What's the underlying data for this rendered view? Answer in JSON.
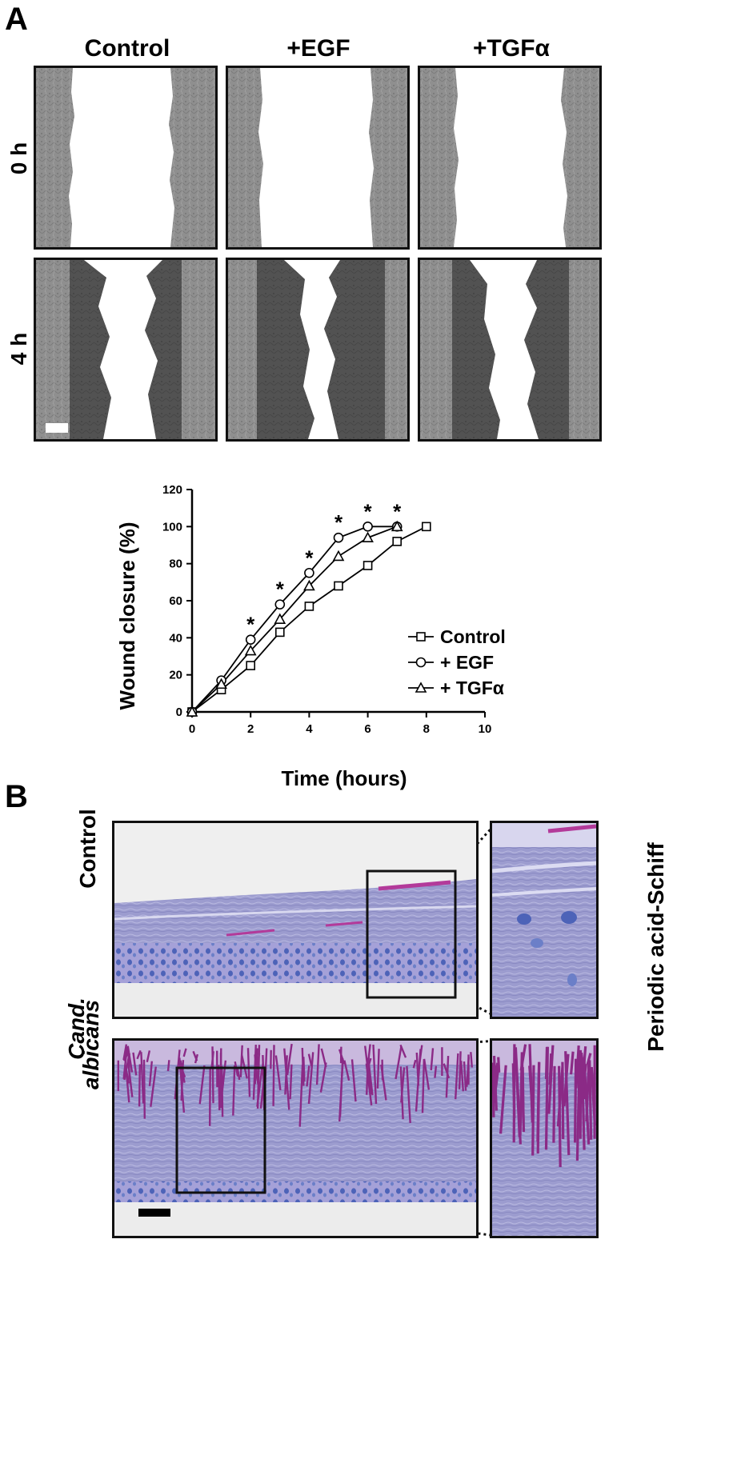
{
  "panel_a": {
    "letter": "A",
    "columns": [
      "Control",
      "+EGF",
      "+TGFα"
    ],
    "rows": [
      "0 h",
      "4 h"
    ]
  },
  "chart_data": {
    "type": "line",
    "xlabel": "Time (hours)",
    "ylabel": "Wound closure (%)",
    "xlim": [
      0,
      10
    ],
    "ylim": [
      0,
      120
    ],
    "xticks": [
      0,
      2,
      4,
      6,
      8,
      10
    ],
    "yticks": [
      0,
      20,
      40,
      60,
      80,
      100,
      120
    ],
    "legend_position": "lower-right",
    "series": [
      {
        "name": "Control",
        "marker": "square",
        "x": [
          0,
          1,
          2,
          3,
          4,
          5,
          6,
          7,
          8
        ],
        "y": [
          0,
          12,
          25,
          43,
          57,
          68,
          79,
          92,
          100
        ]
      },
      {
        "name": "+ EGF",
        "marker": "circle",
        "x": [
          0,
          1,
          2,
          3,
          4,
          5,
          6,
          7
        ],
        "y": [
          0,
          17,
          39,
          58,
          75,
          94,
          100,
          100
        ]
      },
      {
        "name": "+ TGFα",
        "marker": "triangle",
        "x": [
          0,
          1,
          2,
          3,
          4,
          5,
          6,
          7
        ],
        "y": [
          0,
          15,
          33,
          50,
          68,
          84,
          94,
          100
        ]
      }
    ],
    "significance": {
      "symbol": "*",
      "x": [
        2,
        3,
        4,
        5,
        6,
        7
      ]
    }
  },
  "panel_b": {
    "letter": "B",
    "rows": [
      "Control",
      "Cand.",
      "albicans"
    ],
    "stain_label": "Periodic acid-Schiff"
  }
}
